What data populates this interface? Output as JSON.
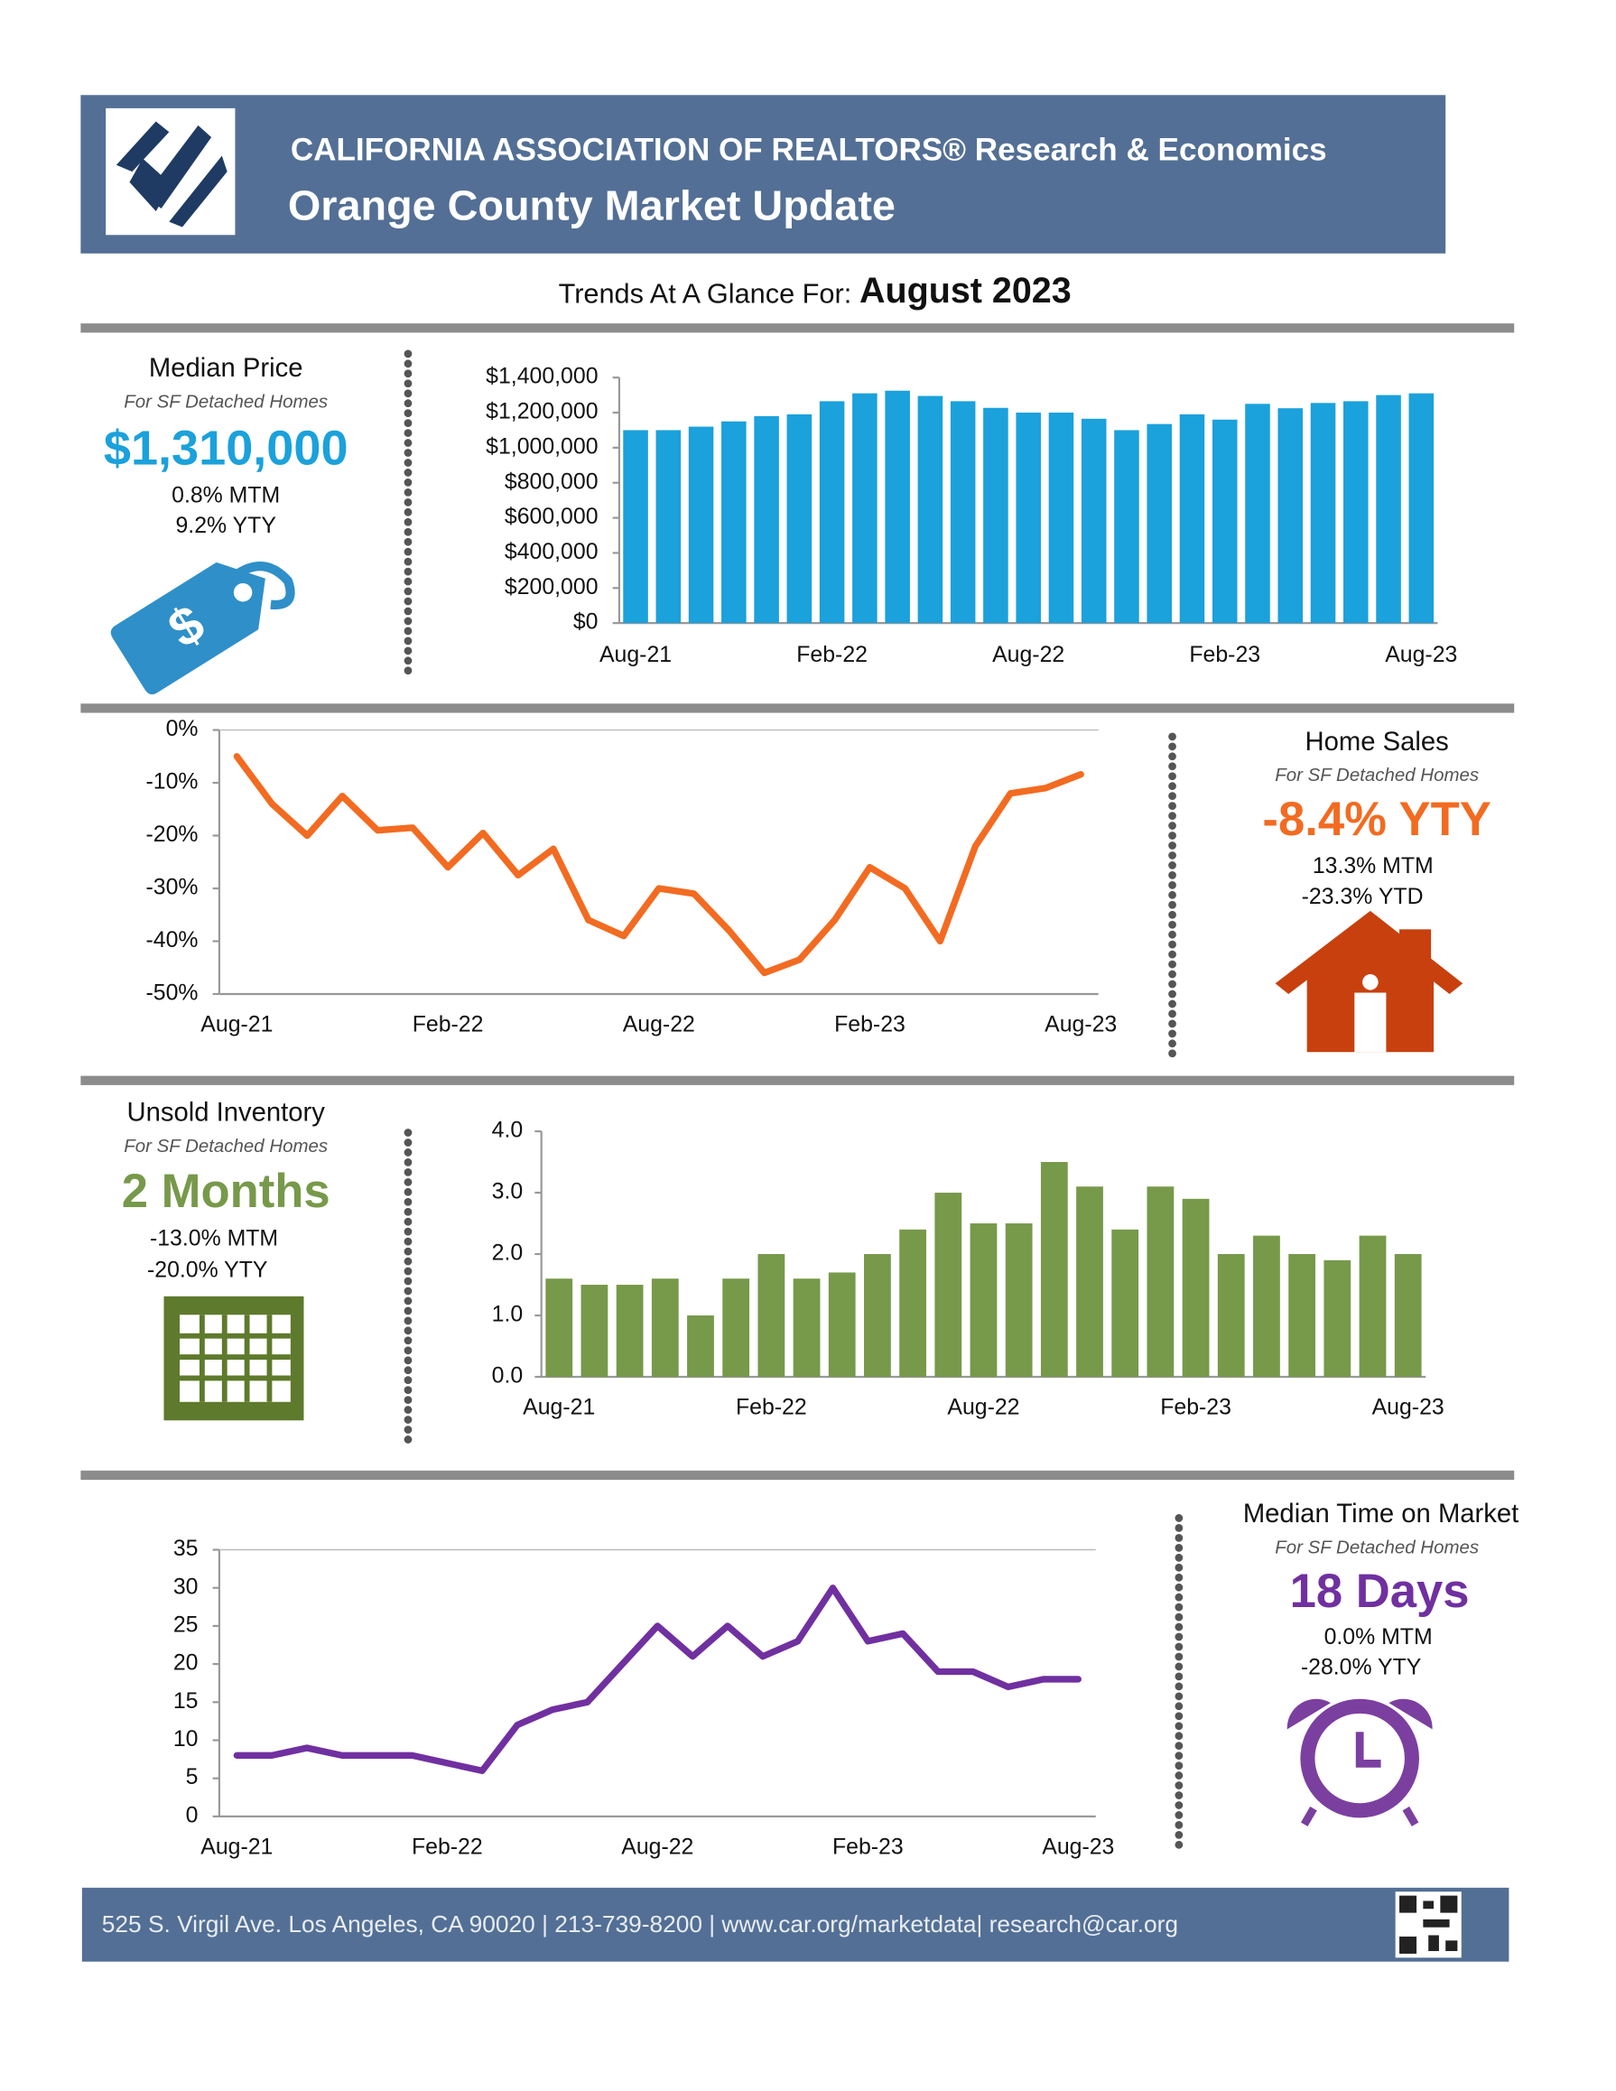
{
  "header": {
    "org": "CALIFORNIA ASSOCIATION OF REALTORS® Research & Economics",
    "title": "Orange County Market Update"
  },
  "trends": {
    "label": "Trends At A Glance For:",
    "period": "August 2023"
  },
  "panels": {
    "median_price": {
      "title": "Median Price",
      "subtitle": "For SF Detached Homes",
      "headline": "$1,310,000",
      "stats": [
        "0.8% MTM",
        "9.2% YTY"
      ]
    },
    "home_sales": {
      "title": "Home Sales",
      "subtitle": "For SF Detached Homes",
      "headline": "-8.4% YTY",
      "stats": [
        "13.3% MTM",
        "-23.3% YTD"
      ]
    },
    "inventory": {
      "title": "Unsold Inventory",
      "subtitle": "For SF Detached Homes",
      "headline": "2 Months",
      "stats": [
        "-13.0% MTM",
        "-20.0% YTY"
      ]
    },
    "time_on_market": {
      "title": "Median Time on Market",
      "subtitle": "For SF Detached Homes",
      "headline": "18 Days",
      "stats": [
        "0.0% MTM",
        "-28.0% YTY"
      ]
    }
  },
  "footer": {
    "text": "525 S. Virgil Ave. Los Angeles, CA 90020 | 213-739-8200 | www.car.org/marketdata| research@car.org"
  },
  "chart_data": [
    {
      "type": "bar",
      "color": "#1ba1db",
      "categories": [
        "Aug-21",
        null,
        null,
        null,
        null,
        null,
        "Feb-22",
        null,
        null,
        null,
        null,
        null,
        "Aug-22",
        null,
        null,
        null,
        null,
        null,
        "Feb-23",
        null,
        null,
        null,
        null,
        null,
        "Aug-23"
      ],
      "values": [
        1100000,
        1100000,
        1120000,
        1150000,
        1180000,
        1190000,
        1265000,
        1310000,
        1325000,
        1295000,
        1265000,
        1227000,
        1200000,
        1200000,
        1165000,
        1100000,
        1135000,
        1190000,
        1160000,
        1250000,
        1225000,
        1255000,
        1265000,
        1300000,
        1310000
      ],
      "ylim": [
        0,
        1400000
      ],
      "yticks": [
        {
          "value": 0,
          "label": "$0"
        },
        {
          "value": 200000,
          "label": "$200,000"
        },
        {
          "value": 400000,
          "label": "$400,000"
        },
        {
          "value": 600000,
          "label": "$600,000"
        },
        {
          "value": 800000,
          "label": "$800,000"
        },
        {
          "value": 1000000,
          "label": "$1,000,000"
        },
        {
          "value": 1200000,
          "label": "$1,200,000"
        },
        {
          "value": 1400000,
          "label": "$1,400,000"
        }
      ]
    },
    {
      "type": "line",
      "color": "#f26b21",
      "categories": [
        "Aug-21",
        null,
        null,
        null,
        null,
        null,
        "Feb-22",
        null,
        null,
        null,
        null,
        null,
        "Aug-22",
        null,
        null,
        null,
        null,
        null,
        "Feb-23",
        null,
        null,
        null,
        null,
        null,
        "Aug-23"
      ],
      "values": [
        -5,
        -14,
        -20,
        -12.5,
        -19,
        -18.5,
        -26,
        -19.5,
        -27.5,
        -22.5,
        -36,
        -39,
        -30,
        -31,
        -38,
        -46,
        -43.5,
        -36,
        -26,
        -30,
        -40,
        -22,
        -12,
        -11,
        -8.4
      ],
      "ylim": [
        -50,
        0
      ],
      "yticks": [
        {
          "value": -50,
          "label": "-50%"
        },
        {
          "value": -40,
          "label": "-40%"
        },
        {
          "value": -30,
          "label": "-30%"
        },
        {
          "value": -20,
          "label": "-20%"
        },
        {
          "value": -10,
          "label": "-10%"
        },
        {
          "value": 0,
          "label": "0%"
        }
      ]
    },
    {
      "type": "bar",
      "color": "#77994a",
      "categories": [
        "Aug-21",
        null,
        null,
        null,
        null,
        null,
        "Feb-22",
        null,
        null,
        null,
        null,
        null,
        "Aug-22",
        null,
        null,
        null,
        null,
        null,
        "Feb-23",
        null,
        null,
        null,
        null,
        null,
        "Aug-23"
      ],
      "values": [
        1.6,
        1.5,
        1.5,
        1.6,
        1.0,
        1.6,
        2.0,
        1.6,
        1.7,
        2.0,
        2.4,
        3.0,
        2.5,
        2.5,
        3.5,
        3.1,
        2.4,
        3.1,
        2.9,
        2.0,
        2.3,
        2.0,
        1.9,
        2.3,
        2.0
      ],
      "ylim": [
        0,
        4
      ],
      "yticks": [
        {
          "value": 0,
          "label": "0.0"
        },
        {
          "value": 1,
          "label": "1.0"
        },
        {
          "value": 2,
          "label": "2.0"
        },
        {
          "value": 3,
          "label": "3.0"
        },
        {
          "value": 4,
          "label": "4.0"
        }
      ]
    },
    {
      "type": "line",
      "color": "#7030a0",
      "categories": [
        "Aug-21",
        null,
        null,
        null,
        null,
        null,
        "Feb-22",
        null,
        null,
        null,
        null,
        null,
        "Aug-22",
        null,
        null,
        null,
        null,
        null,
        "Feb-23",
        null,
        null,
        null,
        null,
        null,
        "Aug-23"
      ],
      "values": [
        8,
        8,
        9,
        8,
        8,
        8,
        7,
        6,
        12,
        14,
        15,
        20,
        25,
        21,
        25,
        21,
        23,
        30,
        23,
        24,
        19,
        19,
        17,
        18,
        18
      ],
      "ylim": [
        0,
        35
      ],
      "yticks": [
        0,
        5,
        10,
        15,
        20,
        25,
        30,
        35
      ]
    }
  ]
}
